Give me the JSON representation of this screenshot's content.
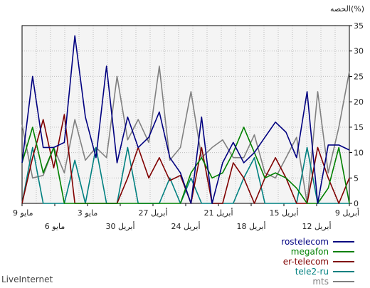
{
  "chart_data": {
    "type": "line",
    "ylabel": "الحصه(%)",
    "ylim": [
      0,
      35
    ],
    "yticks": [
      0,
      5,
      10,
      15,
      20,
      25,
      30,
      35
    ],
    "grid": true,
    "legend_placement": "bottom-right",
    "x_labels_row1": [
      "9 مايو",
      "3 مايو",
      "27 أبريل",
      "21 أبريل",
      "15 أبريل",
      "9 أبريل"
    ],
    "x_labels_row2": [
      "6 مايو",
      "30 أبريل",
      "24 أبريل",
      "18 أبريل",
      "12 أبريل"
    ],
    "series": [
      {
        "name": "rostelecom",
        "color": "#000080",
        "values": [
          8,
          25,
          11,
          11,
          12,
          33,
          17,
          9,
          27,
          8,
          17,
          11,
          13,
          18,
          9,
          6,
          0,
          17,
          0,
          8,
          12,
          8,
          10,
          13,
          16,
          14,
          9,
          22,
          0,
          11.5,
          11.5,
          10.5
        ]
      },
      {
        "name": "megafon",
        "color": "#008000",
        "values": [
          8,
          15,
          6,
          11,
          0,
          0,
          0,
          0,
          0,
          0,
          0,
          0,
          0,
          0,
          0,
          0,
          6,
          9,
          5,
          6,
          10,
          15,
          10,
          5,
          6,
          5,
          3,
          0,
          0,
          3,
          11,
          0
        ]
      },
      {
        "name": "er-telecom",
        "color": "#800000",
        "values": [
          0,
          9,
          16.5,
          7,
          17.5,
          0,
          0,
          0,
          0,
          0,
          5,
          11,
          5,
          9,
          4.5,
          5.5,
          0,
          11,
          0,
          0,
          8,
          5,
          0,
          5,
          9,
          5,
          0,
          0,
          11,
          5,
          0,
          5
        ]
      },
      {
        "name": "tele2-ru",
        "color": "#008080",
        "values": [
          0,
          11,
          0,
          0,
          0,
          8.5,
          0,
          11,
          0,
          0,
          11,
          0,
          0,
          0,
          5,
          0,
          5,
          0,
          0,
          0,
          0,
          5,
          9,
          0,
          0,
          0,
          0,
          11,
          0,
          0,
          0,
          0
        ]
      },
      {
        "name": "mts",
        "color": "#808080",
        "values": [
          15.5,
          5,
          5.5,
          11,
          6,
          16.5,
          8.5,
          11,
          9,
          25,
          12.5,
          16.5,
          12,
          27,
          8.5,
          11,
          22,
          9,
          11,
          12.5,
          9,
          9,
          13.5,
          6,
          5,
          9,
          13,
          0,
          22,
          6,
          15,
          26
        ]
      }
    ]
  },
  "footer": {
    "brand": "LiveInternet"
  }
}
